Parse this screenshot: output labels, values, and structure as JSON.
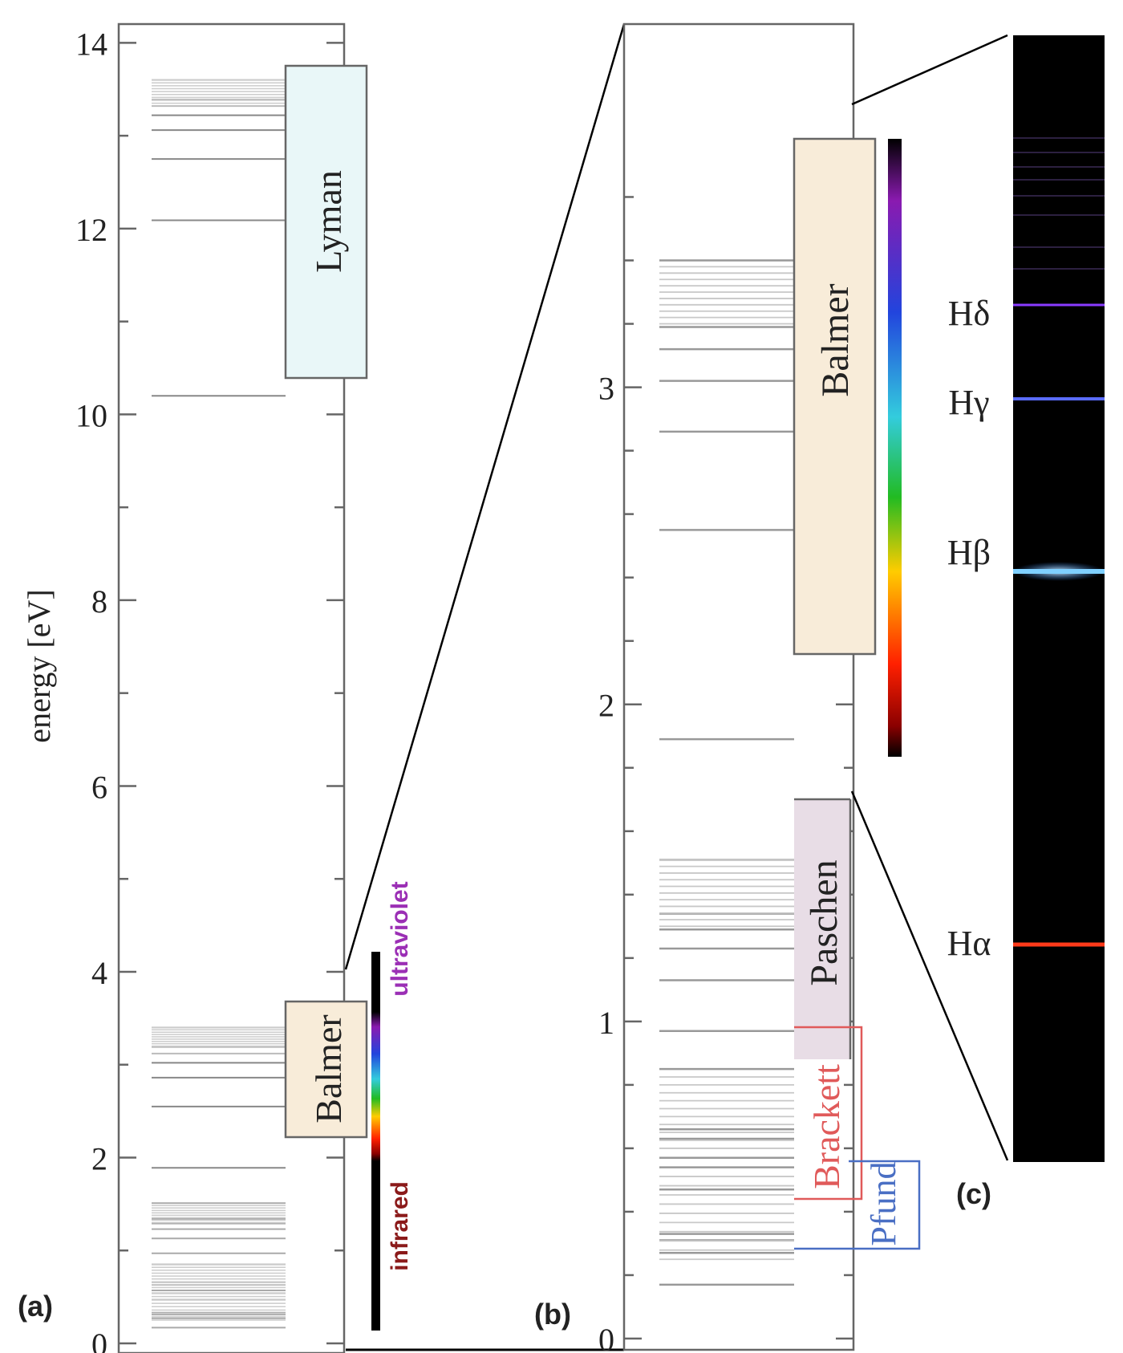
{
  "panel_a": {
    "label": "(a)",
    "y_axis_label": "energy [eV]",
    "ticks": [
      "0",
      "2",
      "4",
      "6",
      "8",
      "10",
      "12",
      "14"
    ],
    "series_labels": [
      "Lyman",
      "Balmer"
    ],
    "spectrum_labels": {
      "top": "ultraviolet",
      "bottom": "infrared"
    }
  },
  "panel_b": {
    "label": "(b)",
    "ticks": [
      "0",
      "1",
      "2",
      "3"
    ],
    "series_labels": [
      "Balmer",
      "Paschen",
      "Brackett",
      "Pfund"
    ]
  },
  "panel_c": {
    "label": "(c)",
    "line_labels": [
      "Hδ",
      "Hγ",
      "Hβ",
      "Hα"
    ]
  },
  "colors": {
    "lyman_box": "#e9f7f8",
    "balmer_box": "#f8ecd9",
    "paschen_box": "#e8dde6",
    "brackett_outline": "#e05a5a",
    "pfund_outline": "#4a6fc4",
    "ultraviolet_text": "#9b2fb5",
    "infrared_text": "#8b1a1a",
    "spectrum_bg": "#000000",
    "h_alpha": "#ff3a1a",
    "h_beta": "#7fd0ff",
    "h_gamma": "#5a6cff",
    "h_delta": "#8a3cff"
  },
  "chart_data": {
    "type": "energy-level diagram",
    "ylabel": "energy [eV]",
    "panel_a_ylim": [
      0,
      14
    ],
    "panel_b_ylim": [
      0,
      3.9
    ],
    "series": [
      {
        "name": "Lyman",
        "lower_level": 1,
        "lines_eV": [
          10.2,
          12.09,
          12.75,
          13.06,
          13.22,
          13.32,
          13.39,
          13.6
        ]
      },
      {
        "name": "Balmer",
        "lower_level": 2,
        "lines_eV": [
          1.89,
          2.55,
          2.86,
          3.02,
          3.12,
          3.19,
          3.4
        ]
      },
      {
        "name": "Paschen",
        "lower_level": 3,
        "lines_eV": [
          0.66,
          0.97,
          1.13,
          1.23,
          1.29,
          1.34,
          1.51
        ]
      },
      {
        "name": "Brackett",
        "lower_level": 4,
        "lines_eV": [
          0.31,
          0.47,
          0.57,
          0.63,
          0.85
        ]
      },
      {
        "name": "Pfund",
        "lower_level": 5,
        "lines_eV": [
          0.17,
          0.27,
          0.33,
          0.54
        ]
      }
    ],
    "visible_lines": [
      {
        "name": "Hδ",
        "energy_eV": 3.02
      },
      {
        "name": "Hγ",
        "energy_eV": 2.86
      },
      {
        "name": "Hβ",
        "energy_eV": 2.55
      },
      {
        "name": "Hα",
        "energy_eV": 1.89
      }
    ]
  }
}
